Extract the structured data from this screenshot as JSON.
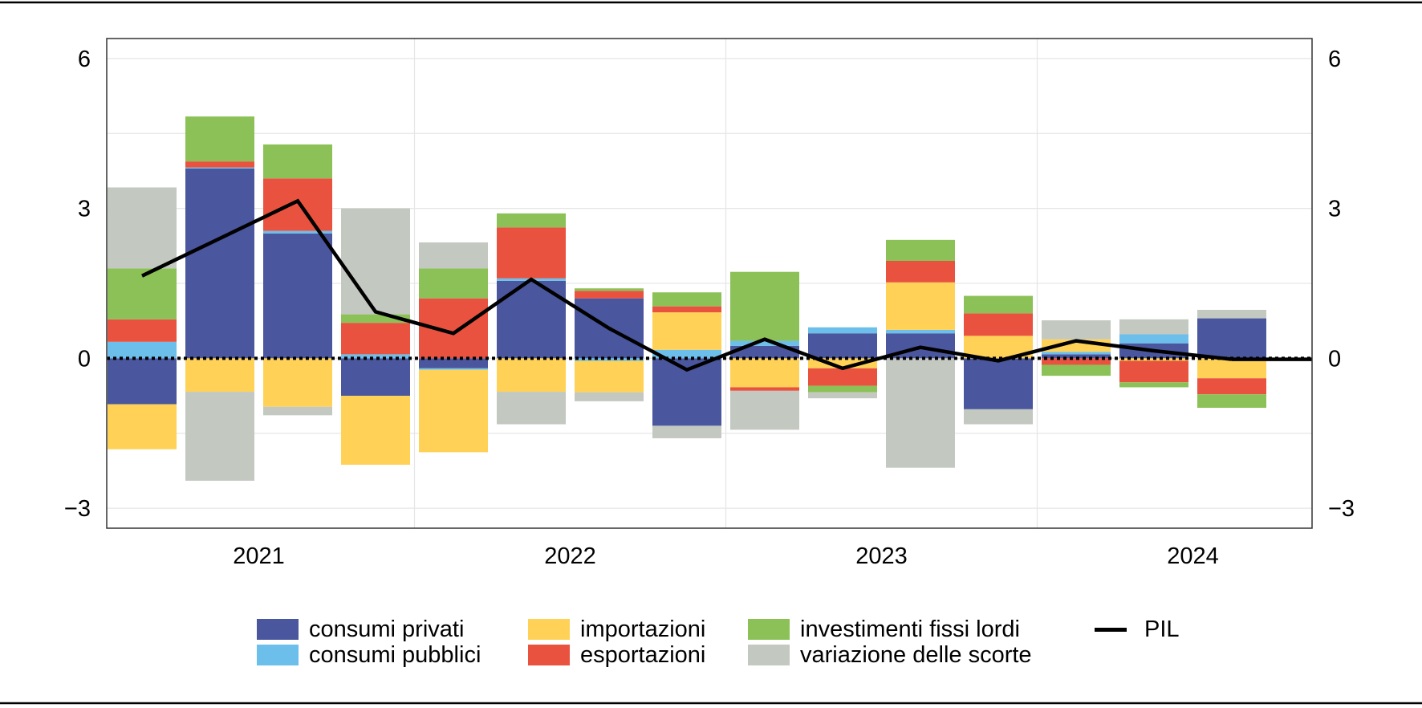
{
  "chart_data": {
    "type": "bar",
    "stacked": true,
    "periods": [
      "2021Q1",
      "2021Q2",
      "2021Q3",
      "2021Q4",
      "2022Q1",
      "2022Q2",
      "2022Q3",
      "2022Q4",
      "2023Q1",
      "2023Q2",
      "2023Q3",
      "2023Q4",
      "2024Q1",
      "2024Q2",
      "2024Q3"
    ],
    "x_labels": [
      "2021",
      "2022",
      "2023",
      "2024"
    ],
    "y_ticks": [
      "6",
      "3",
      "0",
      "−3"
    ],
    "y_tick_values": [
      6,
      3,
      0,
      -3
    ],
    "ylim": [
      -3.4,
      6.4
    ],
    "series": [
      {
        "name": "consumi privati",
        "color": "#4a569d",
        "values": [
          -0.92,
          3.8,
          2.5,
          -0.75,
          -0.2,
          1.55,
          1.2,
          -1.35,
          0.25,
          0.5,
          0.5,
          -1.02,
          0.08,
          0.3,
          0.8
        ]
      },
      {
        "name": "consumi pubblici",
        "color": "#6bbfea",
        "values": [
          0.33,
          0.02,
          0.05,
          0.08,
          -0.03,
          0.05,
          -0.05,
          0.17,
          0.1,
          0.12,
          0.07,
          0.0,
          0.05,
          0.18,
          0.0
        ]
      },
      {
        "name": "importazioni",
        "color": "#ffd156",
        "values": [
          -0.9,
          -0.67,
          -0.97,
          -1.38,
          -1.65,
          -0.67,
          -0.63,
          0.75,
          -0.58,
          -0.2,
          0.95,
          0.45,
          0.25,
          -0.05,
          -0.4
        ]
      },
      {
        "name": "esportazioni",
        "color": "#e9523f",
        "values": [
          0.45,
          0.12,
          1.05,
          0.63,
          1.2,
          1.02,
          0.15,
          0.12,
          -0.07,
          -0.35,
          0.43,
          0.45,
          -0.13,
          -0.43,
          -0.32
        ]
      },
      {
        "name": "investimenti fissi lordi",
        "color": "#8bc157",
        "values": [
          1.02,
          0.9,
          0.68,
          0.17,
          0.6,
          0.28,
          0.05,
          0.28,
          1.38,
          -0.13,
          0.42,
          0.35,
          -0.22,
          -0.1,
          -0.27
        ]
      },
      {
        "name": "variazione delle scorte",
        "color": "#c3c8c0",
        "values": [
          1.62,
          -1.78,
          -0.17,
          2.12,
          0.52,
          -0.65,
          -0.18,
          -0.25,
          -0.78,
          -0.12,
          -2.19,
          -0.3,
          0.38,
          0.3,
          0.17
        ]
      }
    ],
    "line": {
      "name": "PIL",
      "color": "#000000",
      "values": [
        1.65,
        2.4,
        3.15,
        0.93,
        0.5,
        1.58,
        0.6,
        -0.23,
        0.38,
        -0.2,
        0.22,
        -0.05,
        0.35,
        0.15,
        -0.02
      ]
    },
    "zero_line": "dotted",
    "grid": true,
    "legend_position": "bottom"
  }
}
